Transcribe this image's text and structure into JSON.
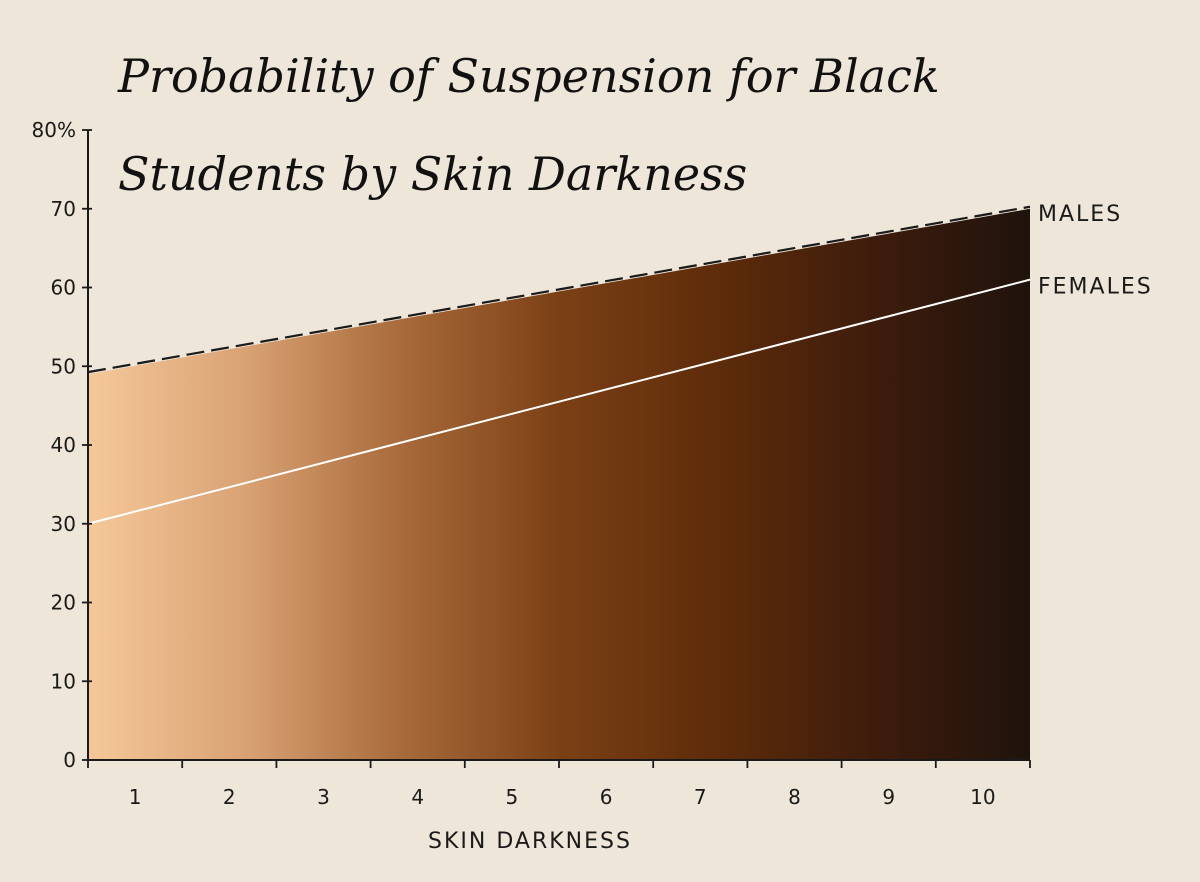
{
  "chart_data": {
    "type": "area",
    "title_lines": [
      "Probability of Suspension for Black",
      "Students by Skin Darkness"
    ],
    "xlabel": "SKIN DARKNESS",
    "ylabel": "",
    "xlim": [
      0.5,
      10.5
    ],
    "ylim": [
      0,
      80
    ],
    "x_ticks": [
      1,
      2,
      3,
      4,
      5,
      6,
      7,
      8,
      9,
      10
    ],
    "x_tick_labels": [
      "1",
      "2",
      "3",
      "4",
      "5",
      "6",
      "7",
      "8",
      "9",
      "10"
    ],
    "y_ticks": [
      0,
      10,
      20,
      30,
      40,
      50,
      60,
      70,
      80
    ],
    "y_tick_labels": [
      "0",
      "10",
      "20",
      "30",
      "40",
      "50",
      "60",
      "70",
      "80%"
    ],
    "grid": false,
    "legend": "none",
    "series": [
      {
        "name": "MALES",
        "style": "dashed",
        "color": "#1a1a1a",
        "x": [
          0.5,
          10.5
        ],
        "values": [
          49,
          70
        ]
      },
      {
        "name": "FEMALES",
        "style": "solid",
        "color": "#ffffff",
        "x": [
          0.5,
          10.5
        ],
        "values": [
          30,
          61
        ]
      }
    ],
    "fill_gradient": [
      "#f5c89a",
      "#d9a273",
      "#a86a3a",
      "#7b4015",
      "#5e2c0a",
      "#3e1c0c",
      "#1f130c"
    ]
  }
}
